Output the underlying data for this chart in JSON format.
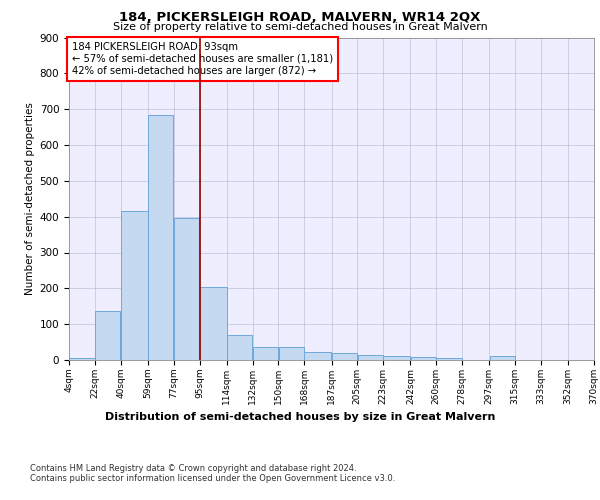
{
  "title": "184, PICKERSLEIGH ROAD, MALVERN, WR14 2QX",
  "subtitle": "Size of property relative to semi-detached houses in Great Malvern",
  "xlabel": "Distribution of semi-detached houses by size in Great Malvern",
  "ylabel": "Number of semi-detached properties",
  "bar_color": "#c5d9f1",
  "bar_edge_color": "#6fa8dc",
  "grid_color": "#b0b8d0",
  "background_color": "#eeeeff",
  "annotation_text": "184 PICKERSLEIGH ROAD: 93sqm\n← 57% of semi-detached houses are smaller (1,181)\n42% of semi-detached houses are larger (872) →",
  "annotation_box_color": "white",
  "annotation_box_edge_color": "red",
  "vline_x": 95,
  "vline_color": "#990000",
  "bins": [
    4,
    22,
    40,
    59,
    77,
    95,
    114,
    132,
    150,
    168,
    187,
    205,
    223,
    242,
    260,
    278,
    297,
    315,
    333,
    352,
    370
  ],
  "bin_labels": [
    "4sqm",
    "22sqm",
    "40sqm",
    "59sqm",
    "77sqm",
    "95sqm",
    "114sqm",
    "132sqm",
    "150sqm",
    "168sqm",
    "187sqm",
    "205sqm",
    "223sqm",
    "242sqm",
    "260sqm",
    "278sqm",
    "297sqm",
    "315sqm",
    "333sqm",
    "352sqm",
    "370sqm"
  ],
  "heights": [
    5,
    138,
    415,
    685,
    395,
    205,
    70,
    37,
    35,
    22,
    20,
    13,
    10,
    9,
    5,
    0,
    10,
    0,
    0,
    0
  ],
  "ylim": [
    0,
    900
  ],
  "yticks": [
    0,
    100,
    200,
    300,
    400,
    500,
    600,
    700,
    800,
    900
  ],
  "footer_line1": "Contains HM Land Registry data © Crown copyright and database right 2024.",
  "footer_line2": "Contains public sector information licensed under the Open Government Licence v3.0."
}
